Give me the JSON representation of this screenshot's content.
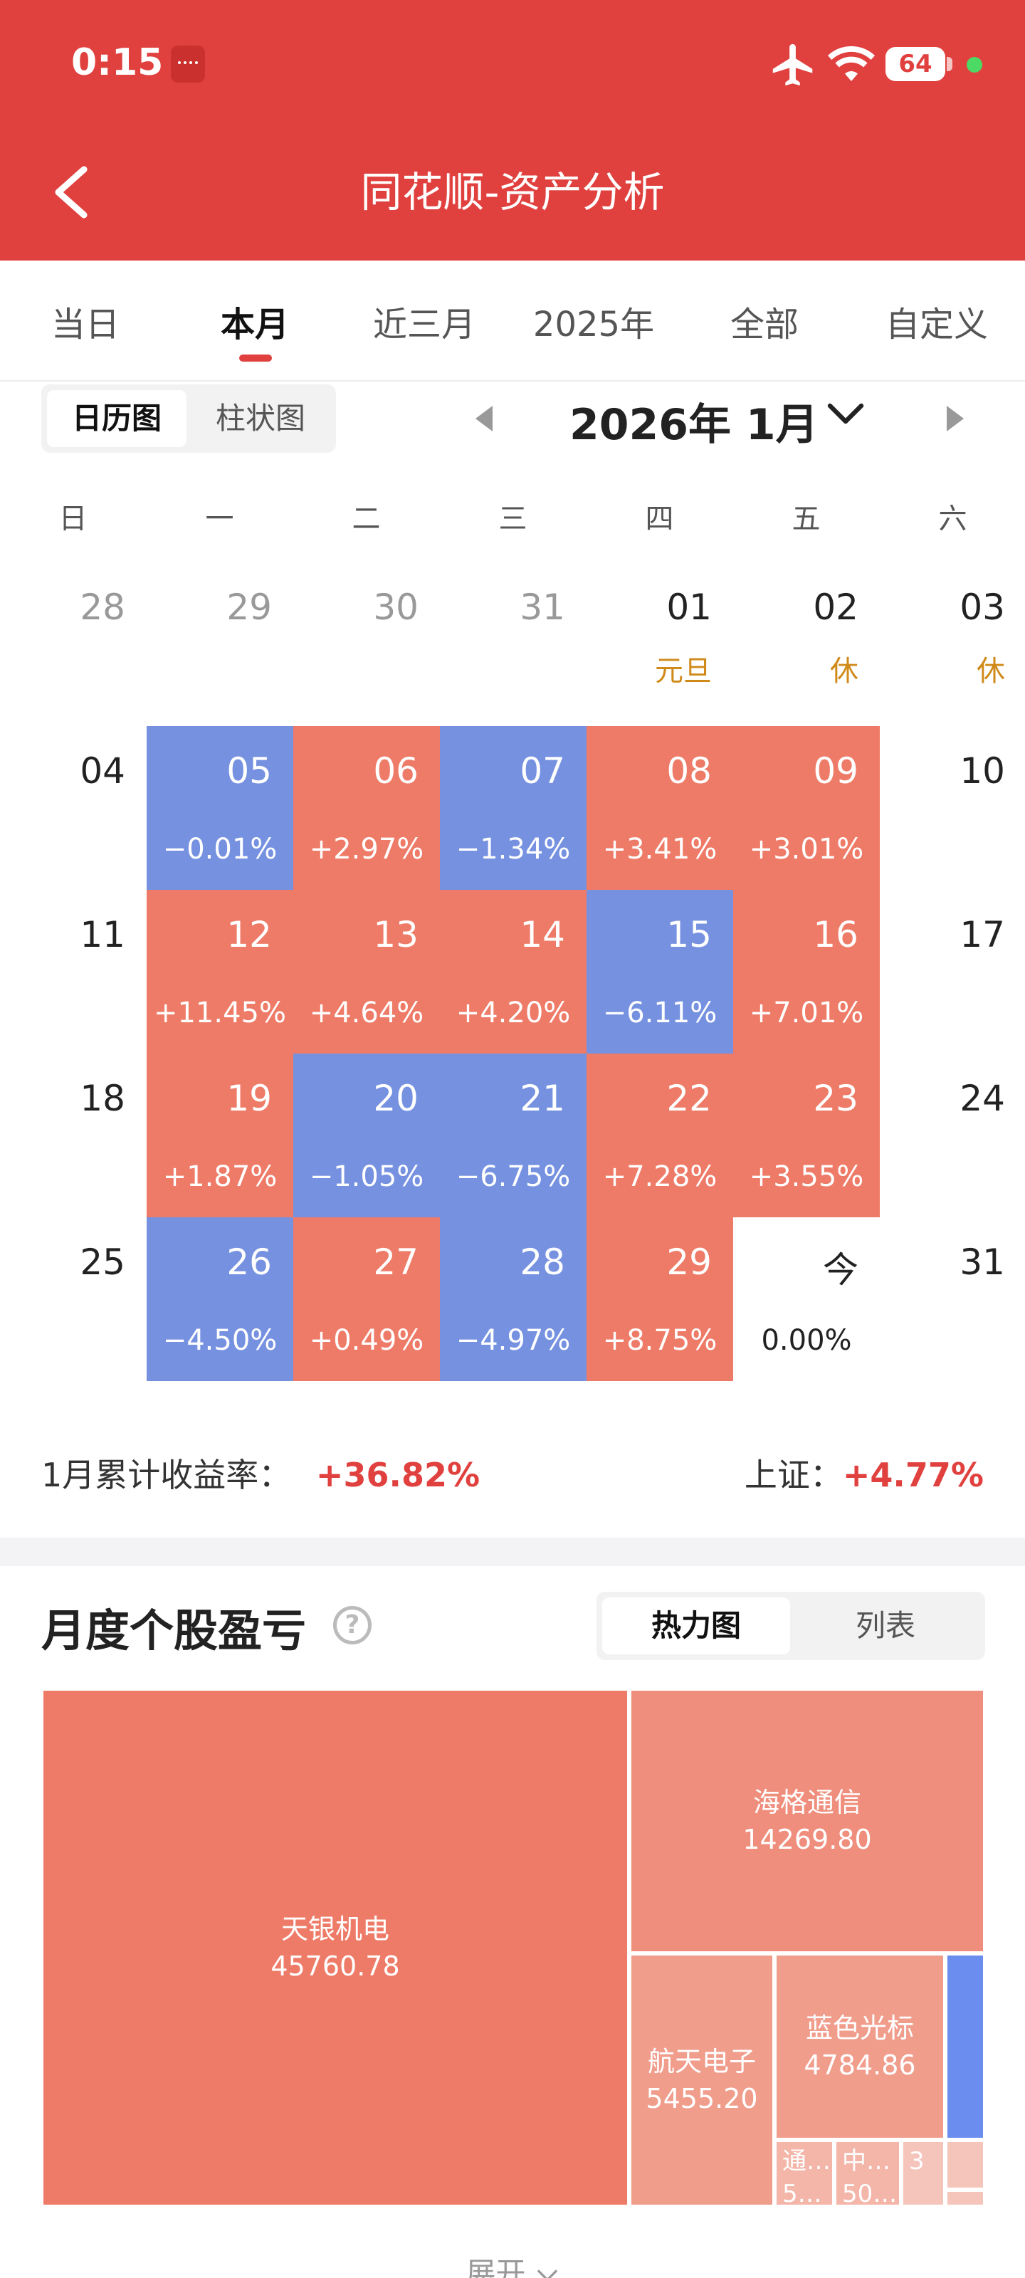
{
  "status_bar": {
    "time": "0:15",
    "battery": "64"
  },
  "header": {
    "title": "同花顺-资产分析"
  },
  "tabs": [
    "当日",
    "本月",
    "近三月",
    "2025年",
    "全部",
    "自定义"
  ],
  "view_toggle": [
    "日历图",
    "柱状图"
  ],
  "month_title": "2026年 1月",
  "weekdays": [
    "日",
    "一",
    "二",
    "三",
    "四",
    "五",
    "六"
  ],
  "calendar": {
    "rows": [
      [
        {
          "day": "28",
          "state": "gray"
        },
        {
          "day": "29",
          "state": "gray"
        },
        {
          "day": "30",
          "state": "gray"
        },
        {
          "day": "31",
          "state": "gray"
        },
        {
          "day": "01",
          "note": "元旦"
        },
        {
          "day": "02",
          "note": "休"
        },
        {
          "day": "03",
          "note": "休"
        }
      ],
      [
        {
          "day": "04"
        },
        {
          "day": "05",
          "pct": "−0.01%",
          "state": "down"
        },
        {
          "day": "06",
          "pct": "+2.97%",
          "state": "up"
        },
        {
          "day": "07",
          "pct": "−1.34%",
          "state": "down"
        },
        {
          "day": "08",
          "pct": "+3.41%",
          "state": "up"
        },
        {
          "day": "09",
          "pct": "+3.01%",
          "state": "up"
        },
        {
          "day": "10"
        }
      ],
      [
        {
          "day": "11"
        },
        {
          "day": "12",
          "pct": "+11.45%",
          "state": "up"
        },
        {
          "day": "13",
          "pct": "+4.64%",
          "state": "up"
        },
        {
          "day": "14",
          "pct": "+4.20%",
          "state": "up"
        },
        {
          "day": "15",
          "pct": "−6.11%",
          "state": "down"
        },
        {
          "day": "16",
          "pct": "+7.01%",
          "state": "up"
        },
        {
          "day": "17"
        }
      ],
      [
        {
          "day": "18"
        },
        {
          "day": "19",
          "pct": "+1.87%",
          "state": "up"
        },
        {
          "day": "20",
          "pct": "−1.05%",
          "state": "down"
        },
        {
          "day": "21",
          "pct": "−6.75%",
          "state": "down"
        },
        {
          "day": "22",
          "pct": "+7.28%",
          "state": "up"
        },
        {
          "day": "23",
          "pct": "+3.55%",
          "state": "up"
        },
        {
          "day": "24"
        }
      ],
      [
        {
          "day": "25"
        },
        {
          "day": "26",
          "pct": "−4.50%",
          "state": "down"
        },
        {
          "day": "27",
          "pct": "+0.49%",
          "state": "up"
        },
        {
          "day": "28",
          "pct": "−4.97%",
          "state": "down"
        },
        {
          "day": "29",
          "pct": "+8.75%",
          "state": "up"
        },
        {
          "day": "今",
          "pct": "0.00%",
          "state": "today"
        },
        {
          "day": "31"
        }
      ]
    ]
  },
  "summary": {
    "label": "1月累计收益率：",
    "value": "+36.82%",
    "index_label": "上证：",
    "index_value": "+4.77%"
  },
  "section": {
    "title": "月度个股盈亏",
    "help": "?",
    "mode_options": [
      "热力图",
      "列表"
    ]
  },
  "heatmap": [
    {
      "name": "天银机电",
      "value": "45760.78",
      "color": "#EE7B67"
    },
    {
      "name": "海格通信",
      "value": "14269.80",
      "color": "#EF8E7C"
    },
    {
      "name": "航天电子",
      "value": "5455.20",
      "color": "#F09D8C"
    },
    {
      "name": "蓝色光标",
      "value": "4784.86",
      "color": "#F09D8C"
    },
    {
      "name": "通…",
      "value": "5…",
      "color": "#F3B6A9"
    },
    {
      "name": "中…",
      "value": "50…",
      "color": "#F3B6A9"
    },
    {
      "name": "",
      "value": "3",
      "color": "#F5C5BB"
    },
    {
      "name": "",
      "value": "",
      "color": "#F5C5BB"
    },
    {
      "name": "",
      "value": "",
      "color": "#F5C5BB"
    },
    {
      "name": "",
      "value": "",
      "color": "#6B8DF0"
    }
  ],
  "expand_label": "展开",
  "colors": {
    "brand_red": "#E0413F",
    "up": "#EE7B67",
    "down": "#7591E0"
  }
}
